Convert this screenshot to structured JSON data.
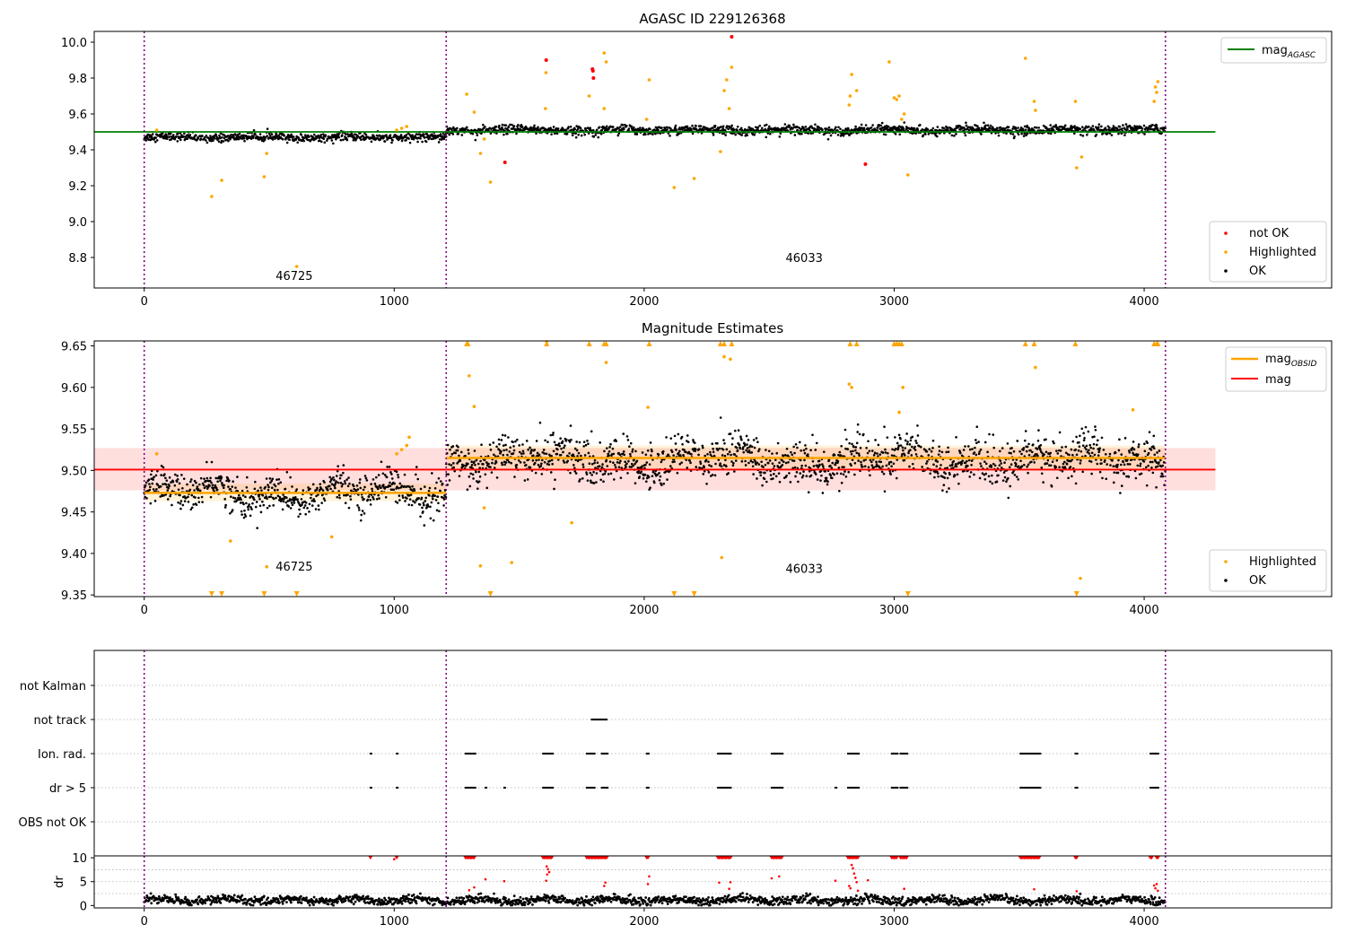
{
  "chart_data": [
    {
      "type": "scatter",
      "title": "AGASC ID 229126368",
      "xlim": [
        -200,
        4750
      ],
      "ylim": [
        8.63,
        10.06
      ],
      "xticks": [
        0,
        1000,
        2000,
        3000,
        4000
      ],
      "yticks": [
        "8.8",
        "9.0",
        "9.2",
        "9.4",
        "9.6",
        "9.8",
        "10.0"
      ],
      "obs_boundaries": [
        0,
        1208,
        4085
      ],
      "obsid_labels": [
        {
          "text": "46725",
          "x": 600,
          "y": 8.7
        },
        {
          "text": "46033",
          "x": 2640,
          "y": 8.8
        }
      ],
      "reference_line": {
        "name": "mag$_{AGASC}$",
        "label_main": "mag",
        "label_sub": "AGASC",
        "value": 9.5,
        "x_end": 4285,
        "color": "#008000"
      },
      "segments": [
        {
          "x_start": 0,
          "x_end": 1208,
          "mean": 9.47,
          "spread": 0.025
        },
        {
          "x_start": 1208,
          "x_end": 4085,
          "mean": 9.51,
          "spread": 0.028
        }
      ],
      "series": [
        {
          "name": "not OK",
          "color": "#ff0000",
          "points": [
            [
              1608,
              9.9
            ],
            [
              1793,
              9.85
            ],
            [
              1797,
              9.8
            ],
            [
              1443,
              9.33
            ],
            [
              2350,
              10.03
            ],
            [
              2885,
              9.32
            ],
            [
              1795,
              9.84
            ]
          ]
        },
        {
          "name": "Highlighted",
          "color": "#ffa500",
          "points": [
            [
              270,
              9.14
            ],
            [
              310,
              9.23
            ],
            [
              480,
              9.25
            ],
            [
              490,
              9.38
            ],
            [
              610,
              8.75
            ],
            [
              1290,
              9.71
            ],
            [
              1320,
              9.61
            ],
            [
              1345,
              9.38
            ],
            [
              1385,
              9.22
            ],
            [
              1360,
              9.46
            ],
            [
              1605,
              9.63
            ],
            [
              1607,
              9.83
            ],
            [
              1780,
              9.7
            ],
            [
              1840,
              9.94
            ],
            [
              1848,
              9.89
            ],
            [
              1840,
              9.63
            ],
            [
              2020,
              9.79
            ],
            [
              2010,
              9.57
            ],
            [
              2120,
              9.19
            ],
            [
              2200,
              9.24
            ],
            [
              2305,
              9.39
            ],
            [
              2320,
              9.73
            ],
            [
              2330,
              9.79
            ],
            [
              2350,
              9.86
            ],
            [
              2340,
              9.63
            ],
            [
              2820,
              9.65
            ],
            [
              2830,
              9.82
            ],
            [
              2850,
              9.73
            ],
            [
              2824,
              9.7
            ],
            [
              2980,
              9.89
            ],
            [
              3000,
              9.69
            ],
            [
              3010,
              9.68
            ],
            [
              3020,
              9.7
            ],
            [
              3030,
              9.57
            ],
            [
              3055,
              9.26
            ],
            [
              3040,
              9.6
            ],
            [
              3525,
              9.91
            ],
            [
              3560,
              9.67
            ],
            [
              3565,
              9.62
            ],
            [
              3725,
              9.67
            ],
            [
              3730,
              9.3
            ],
            [
              3750,
              9.36
            ],
            [
              4040,
              9.67
            ],
            [
              4045,
              9.75
            ],
            [
              4055,
              9.78
            ],
            [
              4050,
              9.72
            ],
            [
              1030,
              9.52
            ],
            [
              1050,
              9.53
            ],
            [
              1010,
              9.51
            ],
            [
              50,
              9.51
            ]
          ]
        },
        {
          "name": "OK",
          "color": "#000000",
          "points": []
        }
      ],
      "legend_top": {
        "position": "upper right",
        "entries": [
          "mag$_{AGASC}$"
        ]
      },
      "legend_bottom": {
        "position": "lower right",
        "entries": [
          "not OK",
          "Highlighted",
          "OK"
        ]
      },
      "xlabel": "",
      "ylabel": ""
    },
    {
      "type": "scatter",
      "title": "Magnitude Estimates",
      "xlim": [
        -200,
        4750
      ],
      "ylim": [
        9.348,
        9.656
      ],
      "xticks": [
        0,
        1000,
        2000,
        3000,
        4000
      ],
      "yticks": [
        "9.35",
        "9.40",
        "9.45",
        "9.50",
        "9.55",
        "9.60",
        "9.65"
      ],
      "obs_boundaries": [
        0,
        1208,
        4085
      ],
      "obsid_labels": [
        {
          "text": "46725",
          "x": 600,
          "y": 9.385
        },
        {
          "text": "46033",
          "x": 2640,
          "y": 9.382
        }
      ],
      "mag_line": {
        "name": "mag",
        "value": 9.501,
        "band": [
          9.476,
          9.527
        ],
        "x_end": 4285,
        "color": "#ff0000"
      },
      "mag_obsid": [
        {
          "x_start": 0,
          "x_end": 1208,
          "value": 9.473,
          "band": [
            9.463,
            9.484
          ]
        },
        {
          "x_start": 1208,
          "x_end": 4085,
          "value": 9.515,
          "band": [
            9.5,
            9.53
          ]
        }
      ],
      "segments": [
        {
          "x_start": 0,
          "x_end": 1208,
          "mean": 9.473,
          "spread": 0.013
        },
        {
          "x_start": 1208,
          "x_end": 4085,
          "mean": 9.513,
          "spread": 0.016
        }
      ],
      "clipped_markers": [
        270,
        310,
        480,
        610,
        1290,
        1295,
        1385,
        1610,
        1780,
        1840,
        1848,
        2020,
        2120,
        2200,
        2305,
        2320,
        2350,
        2824,
        2850,
        3000,
        3010,
        3020,
        3030,
        3055,
        3525,
        3560,
        3725,
        3730,
        4040,
        4050,
        4055
      ],
      "clipped_high": [
        1290,
        1295,
        1610,
        1780,
        1840,
        1848,
        2020,
        2305,
        2320,
        2350,
        2824,
        2850,
        3000,
        3010,
        3020,
        3030,
        3525,
        3560,
        3725,
        4040,
        4050,
        4055
      ],
      "series": [
        {
          "name": "Highlighted",
          "color": "#ffa500",
          "points": [
            [
              50,
              9.52
            ],
            [
              345,
              9.415
            ],
            [
              490,
              9.384
            ],
            [
              750,
              9.42
            ],
            [
              1030,
              9.525
            ],
            [
              1050,
              9.53
            ],
            [
              1060,
              9.54
            ],
            [
              1010,
              9.52
            ],
            [
              1300,
              9.614
            ],
            [
              1320,
              9.577
            ],
            [
              1360,
              9.455
            ],
            [
              1345,
              9.385
            ],
            [
              1470,
              9.389
            ],
            [
              1610,
              9.655
            ],
            [
              1710,
              9.437
            ],
            [
              1848,
              9.63
            ],
            [
              2015,
              9.576
            ],
            [
              2310,
              9.395
            ],
            [
              2320,
              9.637
            ],
            [
              2345,
              9.634
            ],
            [
              2820,
              9.604
            ],
            [
              2830,
              9.6
            ],
            [
              3035,
              9.6
            ],
            [
              3020,
              9.57
            ],
            [
              3565,
              9.624
            ],
            [
              3745,
              9.37
            ],
            [
              3955,
              9.573
            ]
          ]
        },
        {
          "name": "OK",
          "color": "#000000",
          "points": []
        }
      ],
      "legend_top": {
        "position": "upper right",
        "entries": [
          "mag$_{OBSID}$",
          "mag"
        ]
      },
      "legend_bottom": {
        "position": "lower right",
        "entries": [
          "Highlighted",
          "OK"
        ]
      },
      "xlabel": "",
      "ylabel": ""
    },
    {
      "type": "scatter",
      "title": "",
      "xlim": [
        -200,
        4750
      ],
      "xticks": [
        0,
        1000,
        2000,
        3000,
        4000
      ],
      "flag_rows": [
        "not Kalman",
        "not track",
        "Ion. rad.",
        "dr > 5",
        "OBS not OK"
      ],
      "flag_marks": {
        "not track": [
          [
            1790,
            1850
          ]
        ],
        "Ion. rad.": [
          [
            905,
            910
          ],
          [
            1010,
            1015
          ],
          [
            1285,
            1325
          ],
          [
            1595,
            1635
          ],
          [
            1770,
            1805
          ],
          [
            1830,
            1855
          ],
          [
            2010,
            2020
          ],
          [
            2295,
            2350
          ],
          [
            2510,
            2555
          ],
          [
            2815,
            2860
          ],
          [
            2990,
            3015
          ],
          [
            3025,
            3055
          ],
          [
            3505,
            3585
          ],
          [
            3725,
            3735
          ],
          [
            4025,
            4060
          ]
        ],
        "dr > 5": [
          [
            905,
            910
          ],
          [
            1010,
            1015
          ],
          [
            1285,
            1325
          ],
          [
            1365,
            1370
          ],
          [
            1440,
            1445
          ],
          [
            1595,
            1635
          ],
          [
            1770,
            1805
          ],
          [
            1830,
            1855
          ],
          [
            2010,
            2020
          ],
          [
            2295,
            2350
          ],
          [
            2510,
            2555
          ],
          [
            2765,
            2770
          ],
          [
            2815,
            2860
          ],
          [
            2990,
            3015
          ],
          [
            3025,
            3055
          ],
          [
            3505,
            3585
          ],
          [
            3725,
            3735
          ],
          [
            4025,
            4060
          ]
        ]
      },
      "obs_boundaries": [
        0,
        1208,
        4085
      ]
    },
    {
      "type": "scatter",
      "title": "",
      "xlim": [
        -200,
        4750
      ],
      "ylim": [
        -0.5,
        10.4
      ],
      "xticks": [
        0,
        1000,
        2000,
        3000,
        4000
      ],
      "yticks": [
        "0",
        "5",
        "10"
      ],
      "ylabel": "dr",
      "clip_value": 10,
      "red_high": [
        905,
        1010,
        1285,
        1290,
        1295,
        1300,
        1305,
        1310,
        1315,
        1320,
        1595,
        1600,
        1605,
        1610,
        1615,
        1620,
        1625,
        1630,
        1770,
        1775,
        1780,
        1785,
        1790,
        1795,
        1800,
        1805,
        1810,
        1815,
        1820,
        1825,
        1830,
        1835,
        1840,
        1845,
        1850,
        2010,
        2015,
        2295,
        2300,
        2305,
        2310,
        2315,
        2320,
        2325,
        2330,
        2335,
        2340,
        2345,
        2510,
        2515,
        2520,
        2525,
        2530,
        2535,
        2540,
        2545,
        2550,
        2815,
        2820,
        2825,
        2830,
        2835,
        2840,
        2845,
        2850,
        2855,
        2990,
        2995,
        3000,
        3005,
        3010,
        3025,
        3030,
        3035,
        3040,
        3045,
        3050,
        3505,
        3510,
        3515,
        3520,
        3525,
        3530,
        3535,
        3540,
        3545,
        3550,
        3555,
        3560,
        3565,
        3570,
        3575,
        3580,
        3725,
        3730,
        4025,
        4030,
        4050,
        4055
      ],
      "red_mid": [
        [
          1300,
          3.2
        ],
        [
          1320,
          3.8
        ],
        [
          1365,
          5.5
        ],
        [
          1440,
          5.1
        ],
        [
          1610,
          8.2
        ],
        [
          1615,
          7.6
        ],
        [
          1620,
          7.0
        ],
        [
          1612,
          6.5
        ],
        [
          1608,
          5.2
        ],
        [
          1840,
          4.1
        ],
        [
          1845,
          4.8
        ],
        [
          2020,
          6.1
        ],
        [
          2015,
          4.5
        ],
        [
          2300,
          4.8
        ],
        [
          2340,
          3.5
        ],
        [
          2345,
          4.9
        ],
        [
          2510,
          5.7
        ],
        [
          2540,
          6.1
        ],
        [
          2765,
          5.2
        ],
        [
          2820,
          4.1
        ],
        [
          2830,
          8.5
        ],
        [
          2835,
          7.8
        ],
        [
          2840,
          6.7
        ],
        [
          2845,
          5.8
        ],
        [
          2850,
          4.9
        ],
        [
          2825,
          3.6
        ],
        [
          2855,
          3.1
        ],
        [
          2895,
          5.3
        ],
        [
          3040,
          3.5
        ],
        [
          3560,
          3.4
        ],
        [
          3730,
          3.0
        ],
        [
          4040,
          4.2
        ],
        [
          4045,
          3.6
        ],
        [
          4050,
          4.5
        ],
        [
          4055,
          3.1
        ],
        [
          1000,
          9.7
        ]
      ],
      "segments": [
        {
          "x_start": 0,
          "x_end": 4085,
          "mean": 1.1,
          "spread": 0.45
        }
      ],
      "obs_boundaries": [
        0,
        1208,
        4085
      ]
    }
  ]
}
